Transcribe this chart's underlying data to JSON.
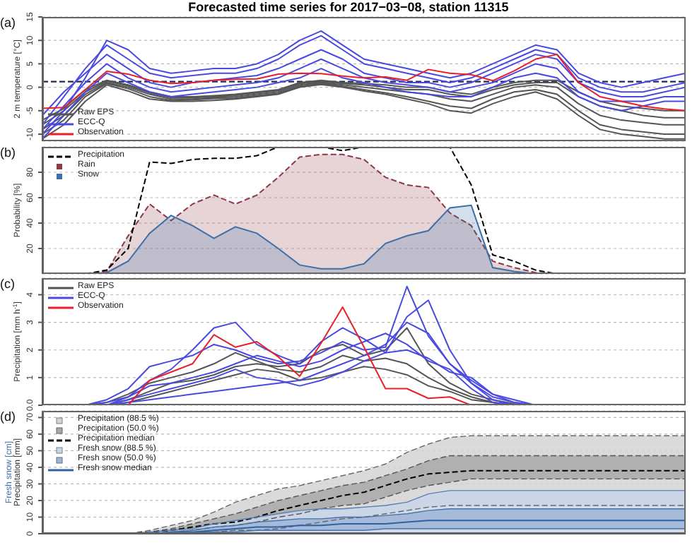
{
  "chart_data": [
    {
      "type": "line",
      "title": "Forecasted time series for 2017−03−08, station 11315",
      "ylabel": "2 m temperature [°C]",
      "annotations": [
        "(a)"
      ],
      "categories": [
        null,
        null,
        null,
        null,
        null,
        null,
        null,
        null,
        null,
        null,
        null,
        null,
        null,
        null,
        null,
        null,
        null,
        null,
        null,
        null,
        null,
        null,
        null,
        null,
        null,
        null,
        null,
        null,
        null,
        null,
        null
      ],
      "ylim": [
        -11.5,
        15
      ],
      "yticks": [
        -10,
        -5,
        0,
        5,
        10,
        15
      ],
      "grid": "y",
      "legend": "bottom left",
      "ref_lines": [
        {
          "axis": "y",
          "value": 1.2,
          "color": "#1f2a5a",
          "line_style": "dashed"
        }
      ],
      "series": [
        {
          "name": "Raw EPS",
          "color": "#555555",
          "values": [
            -9,
            -6,
            -1.5,
            1,
            0,
            -1.5,
            -2.5,
            -2.5,
            -2.2,
            -2,
            -1.5,
            -1,
            0.5,
            1,
            0.5,
            0,
            -0.5,
            -1,
            -1.5,
            -2.5,
            -3,
            -1.5,
            0,
            0.5,
            0,
            -3.5,
            -6,
            -7,
            -7.5,
            -8,
            -8
          ]
        },
        {
          "color": "#555555",
          "values": [
            -10,
            -7,
            -2,
            0.8,
            -0.3,
            -2,
            -2.8,
            -2.7,
            -2.4,
            -2.3,
            -1.8,
            -1.3,
            0.2,
            0.8,
            0.2,
            -0.5,
            -1.2,
            -2,
            -3,
            -4,
            -4.5,
            -2.5,
            -1,
            -0.5,
            -1.5,
            -5,
            -8,
            -9,
            -9.5,
            -10,
            -10
          ]
        },
        {
          "color": "#555555",
          "values": [
            -8,
            -5,
            -1,
            1.3,
            0.3,
            -1.2,
            -2.2,
            -2.2,
            -2,
            -1.7,
            -1.2,
            -0.7,
            0.8,
            1.2,
            0.8,
            0.5,
            0,
            -0.5,
            -0.5,
            -1.5,
            -2,
            -0.5,
            0.5,
            1,
            1,
            -2,
            -4,
            -5,
            -6,
            -6.5,
            -6.5
          ]
        },
        {
          "color": "#555555",
          "values": [
            -11,
            -8,
            -3,
            0.5,
            -0.8,
            -2.5,
            -3,
            -3,
            -2.8,
            -2.5,
            -2,
            -1.5,
            0,
            0.6,
            0,
            -0.8,
            -1.5,
            -2.5,
            -3.5,
            -5,
            -5.5,
            -3.5,
            -2,
            -1,
            -2.5,
            -6,
            -9,
            -10,
            -10.5,
            -11,
            -11
          ]
        },
        {
          "color": "#555555",
          "values": [
            -7,
            -4.5,
            -0.5,
            1.5,
            0.5,
            -1,
            -2,
            -2,
            -1.8,
            -1.5,
            -1,
            -0.5,
            1,
            1.5,
            1,
            0.8,
            0.5,
            0,
            0,
            -1,
            -1.5,
            0,
            1,
            1.5,
            1.5,
            -1,
            -3,
            -4,
            -4.5,
            -5,
            -5
          ]
        },
        {
          "name": "ECC-Q",
          "color": "#4a4ae0",
          "values": [
            -8,
            -2,
            4,
            9,
            6,
            3,
            2,
            2.5,
            3,
            3,
            4,
            6,
            9,
            11,
            8,
            5,
            4,
            3,
            2,
            1,
            2,
            4,
            6,
            8,
            7,
            2,
            0,
            -1,
            -1,
            0,
            1
          ]
        },
        {
          "color": "#4a4ae0",
          "values": [
            -6,
            -1,
            3,
            7,
            4,
            1,
            0,
            1,
            1.5,
            2,
            2.5,
            4,
            6,
            8,
            6,
            3,
            2,
            1,
            1,
            0,
            1,
            3,
            5,
            7,
            6,
            1,
            -1,
            -2,
            -2,
            -1,
            0
          ]
        },
        {
          "color": "#4a4ae0",
          "values": [
            -9,
            -4,
            1,
            5,
            2,
            0,
            -1,
            -0.5,
            0,
            0.5,
            1,
            2,
            4,
            6,
            4,
            2,
            1,
            0.5,
            0,
            -1,
            0,
            1,
            3,
            5,
            4,
            -1,
            -3,
            -3,
            -3,
            -2,
            -2
          ]
        },
        {
          "color": "#4a4ae0",
          "values": [
            -10,
            -5,
            2,
            10,
            8,
            4,
            3,
            3.5,
            4,
            4,
            5,
            7,
            10,
            12,
            9,
            6,
            5,
            4,
            3,
            2,
            3,
            5,
            7,
            9,
            8,
            3,
            1,
            0,
            1,
            2,
            3
          ]
        },
        {
          "color": "#4a4ae0",
          "values": [
            -11,
            -6,
            -1,
            3,
            1,
            -1,
            -2,
            -1.5,
            -1,
            -0.5,
            0,
            1,
            2,
            4,
            2,
            1,
            0,
            -1,
            -1.5,
            -2,
            -2,
            0,
            2,
            3,
            2,
            -2,
            -4,
            -5,
            -4,
            -3,
            -3
          ]
        },
        {
          "name": "Observation",
          "color": "#e8202a",
          "values": [
            -4.5,
            -4.3,
            -0.5,
            3.4,
            2.8,
            1.5,
            0.8,
            1.0,
            1.5,
            1.7,
            1.8,
            2.8,
            3.0,
            2.9,
            2.4,
            2.0,
            2.2,
            1.5,
            3.8,
            3.0,
            2.7,
            1.4,
            3.5,
            6.0,
            7.0,
            1.0,
            -2.0,
            -3.0,
            -4.0,
            -4.6,
            -5.0
          ]
        }
      ]
    },
    {
      "type": "area",
      "ylabel": "Probability [%]",
      "annotations": [
        "(b)"
      ],
      "categories": [
        null,
        null,
        null,
        null,
        null,
        null,
        null,
        null,
        null,
        null,
        null,
        null,
        null,
        null,
        null,
        null,
        null,
        null,
        null,
        null,
        null,
        null,
        null,
        null,
        null,
        null,
        null,
        null,
        null,
        null,
        null
      ],
      "ylim": [
        0,
        100
      ],
      "yticks": [
        20,
        40,
        60,
        80
      ],
      "grid": "y",
      "legend": "top left",
      "series": [
        {
          "name": "Precipitation",
          "type": "line",
          "color": "#000000",
          "line_style": "dashed",
          "values": [
            null,
            null,
            0,
            3,
            20,
            88,
            87,
            90,
            91,
            91,
            93,
            100,
            100,
            100,
            97,
            100,
            100,
            100,
            100,
            100,
            70,
            15,
            10,
            3,
            0,
            null,
            null,
            null,
            null,
            null,
            null
          ]
        },
        {
          "name": "Rain",
          "color": "#8b3a4a",
          "line_style": "dashed",
          "values": [
            null,
            null,
            0,
            2,
            30,
            55,
            42,
            55,
            62,
            55,
            62,
            76,
            92,
            94,
            94,
            90,
            76,
            70,
            68,
            48,
            38,
            10,
            5,
            1,
            0,
            null,
            null,
            null,
            null,
            null,
            null
          ]
        },
        {
          "name": "Snow",
          "color": "#3d6fa8",
          "values": [
            null,
            null,
            0,
            1,
            10,
            32,
            46,
            38,
            28,
            37,
            32,
            20,
            7,
            4,
            4,
            8,
            24,
            30,
            34,
            52,
            54,
            5,
            2,
            0,
            null,
            null,
            null,
            null,
            null,
            null,
            null
          ]
        }
      ]
    },
    {
      "type": "line",
      "ylabel": "Precipitation [mm h$^{-1}$]",
      "annotations": [
        "(c)"
      ],
      "categories": [
        null,
        null,
        null,
        null,
        null,
        null,
        null,
        null,
        null,
        null,
        null,
        null,
        null,
        null,
        null,
        null,
        null,
        null,
        null,
        null,
        null,
        null,
        null,
        null,
        null,
        null,
        null,
        null,
        null,
        null,
        null
      ],
      "ylim": [
        0,
        4.6
      ],
      "yticks": [
        {
          "value": 0,
          "label": "0.0"
        },
        1,
        2,
        3,
        4
      ],
      "grid": "y",
      "legend": "top left",
      "series": [
        {
          "name": "Raw EPS",
          "color": "#555555",
          "values": [
            null,
            null,
            0,
            0.1,
            0.4,
            0.8,
            1.0,
            1.2,
            1.5,
            1.9,
            1.6,
            1.3,
            1.2,
            1.4,
            1.8,
            1.6,
            1.7,
            1.5,
            1.0,
            0.6,
            0.3,
            0.1,
            0,
            null,
            null,
            null,
            null,
            null,
            null,
            null,
            null
          ]
        },
        {
          "color": "#555555",
          "values": [
            null,
            null,
            null,
            0,
            0.2,
            0.5,
            0.8,
            0.9,
            1.1,
            1.4,
            1.5,
            1.4,
            1.5,
            2.0,
            2.2,
            1.8,
            2.0,
            2.8,
            1.5,
            0.8,
            0.4,
            0.2,
            0.05,
            0,
            null,
            null,
            null,
            null,
            null,
            null,
            null
          ]
        },
        {
          "color": "#555555",
          "values": [
            null,
            null,
            null,
            0,
            0.1,
            0.3,
            0.5,
            0.7,
            0.9,
            1.1,
            1.3,
            1.2,
            0.9,
            1.0,
            1.2,
            1.4,
            1.3,
            1.1,
            0.7,
            0.5,
            0.2,
            0.1,
            0,
            null,
            null,
            null,
            null,
            null,
            null,
            null,
            null
          ]
        },
        {
          "name": "ECC-Q",
          "color": "#4a4ae0",
          "values": [
            null,
            null,
            0,
            0.2,
            0.6,
            1.4,
            1.6,
            1.8,
            2.2,
            2.0,
            1.7,
            1.5,
            1.6,
            1.9,
            2.3,
            2.0,
            2.1,
            4.3,
            2.5,
            1.5,
            0.8,
            0.3,
            0.1,
            0,
            null,
            null,
            null,
            null,
            null,
            null,
            null
          ]
        },
        {
          "color": "#4a4ae0",
          "values": [
            null,
            null,
            null,
            0,
            0.2,
            0.4,
            0.6,
            0.8,
            1.0,
            1.3,
            1.0,
            0.9,
            0.7,
            0.9,
            1.2,
            1.6,
            1.9,
            3.2,
            3.8,
            2.0,
            0.8,
            0.2,
            0,
            null,
            null,
            null,
            null,
            null,
            null,
            null,
            null
          ]
        },
        {
          "color": "#4a4ae0",
          "values": [
            null,
            null,
            0,
            0.1,
            0.3,
            0.9,
            1.3,
            2.0,
            2.8,
            3.0,
            2.2,
            1.8,
            1.5,
            2.3,
            2.8,
            2.4,
            1.9,
            2.0,
            1.7,
            1.2,
            1.0,
            0.4,
            0.1,
            0,
            null,
            null,
            null,
            null,
            null,
            null,
            null
          ]
        },
        {
          "color": "#4a4ae0",
          "values": [
            null,
            null,
            null,
            0,
            0.1,
            0.2,
            0.3,
            0.4,
            0.5,
            0.6,
            0.7,
            0.8,
            0.9,
            1.2,
            1.5,
            1.8,
            2.2,
            3.0,
            2.6,
            1.5,
            0.9,
            0.4,
            0.2,
            0,
            null,
            null,
            null,
            null,
            null,
            null,
            null
          ]
        },
        {
          "color": "#4a4ae0",
          "values": [
            null,
            null,
            null,
            0,
            0.3,
            0.7,
            0.8,
            1.0,
            1.2,
            1.5,
            1.8,
            1.6,
            1.4,
            1.6,
            2.0,
            2.3,
            2.6,
            2.2,
            1.6,
            1.3,
            0.6,
            0.1,
            0,
            null,
            null,
            null,
            null,
            null,
            null,
            null,
            null
          ]
        },
        {
          "name": "Observation",
          "color": "#e8202a",
          "values": [
            null,
            null,
            null,
            null,
            0,
            0.9,
            1.2,
            1.5,
            2.55,
            2.1,
            2.3,
            1.75,
            1.05,
            2.25,
            3.55,
            2.1,
            0.6,
            0.6,
            0.25,
            0.3,
            0,
            null,
            null,
            null,
            null,
            null,
            null,
            null,
            null,
            null,
            null
          ]
        }
      ]
    },
    {
      "type": "line",
      "ylabel": "Precipitation [mm]",
      "y2label": "Fresh snow [cm]",
      "annotations": [
        "(d)"
      ],
      "categories": [
        null,
        null,
        null,
        null,
        null,
        null,
        null,
        null,
        null,
        null,
        null,
        null,
        null,
        null,
        null,
        null,
        null,
        null,
        null,
        null,
        null,
        null,
        null,
        null,
        null,
        null,
        null,
        null,
        null,
        null,
        null
      ],
      "ylim": [
        0,
        74
      ],
      "yticks": [
        0,
        10,
        20,
        30,
        40,
        50,
        60,
        70
      ],
      "grid": "y",
      "legend": "top left",
      "series": [
        {
          "name": "Precipitation (88.5 %)",
          "type": "area",
          "color": "#d4d4d4",
          "line_style": "dashed",
          "values": [
            null,
            null,
            null,
            null,
            null,
            null,
            null,
            null,
            null,
            null,
            null,
            null,
            null,
            null,
            null,
            null,
            null,
            null,
            null,
            null,
            null,
            null,
            null,
            null,
            null,
            null,
            null,
            null,
            null,
            null,
            null
          ],
          "lower": [
            null,
            null,
            null,
            null,
            0,
            0,
            0,
            1,
            1,
            2,
            2,
            3,
            5,
            7,
            9,
            10,
            12,
            14,
            16,
            17,
            17,
            17,
            17,
            17,
            17,
            17,
            17,
            17,
            17,
            17,
            17
          ],
          "upper": [
            null,
            null,
            null,
            null,
            0,
            2,
            5,
            8,
            13,
            19,
            23,
            27,
            29,
            32,
            35,
            38,
            42,
            49,
            54,
            58,
            59,
            59,
            59,
            59,
            59,
            59,
            59,
            59,
            59,
            59,
            59
          ]
        },
        {
          "name": "Precipitation (50.0 %)",
          "type": "area",
          "color": "#a8a8a8",
          "line_style": "dashed",
          "values": [
            null,
            null,
            null,
            null,
            null,
            null,
            null,
            null,
            null,
            null,
            null,
            null,
            null,
            null,
            null,
            null,
            null,
            null,
            null,
            null,
            null,
            null,
            null,
            null,
            null,
            null,
            null,
            null,
            null,
            null,
            null
          ],
          "lower": [
            null,
            null,
            null,
            null,
            0,
            0,
            1,
            2,
            4,
            5,
            7,
            10,
            12,
            15,
            17,
            18,
            22,
            26,
            29,
            31,
            33,
            33,
            33,
            33,
            33,
            33,
            33,
            33,
            33,
            33,
            33
          ],
          "upper": [
            null,
            null,
            null,
            null,
            0,
            1,
            3,
            6,
            9,
            12,
            16,
            20,
            23,
            26,
            29,
            31,
            35,
            39,
            44,
            47,
            47,
            47,
            47,
            47,
            47,
            47,
            47,
            47,
            47,
            47,
            47
          ]
        },
        {
          "color": "#666666",
          "line_style": "dashed",
          "values": [
            null,
            null,
            null,
            null,
            0,
            0,
            0,
            1,
            1,
            2,
            2,
            3,
            5,
            7,
            9,
            10,
            12,
            14,
            16,
            17,
            17,
            17,
            17,
            17,
            17,
            17,
            17,
            17,
            17,
            17,
            17
          ]
        },
        {
          "color": "#666666",
          "line_style": "dashed",
          "values": [
            null,
            null,
            null,
            null,
            0,
            2,
            5,
            8,
            13,
            19,
            23,
            27,
            29,
            32,
            35,
            38,
            42,
            49,
            54,
            58,
            59,
            59,
            59,
            59,
            59,
            59,
            59,
            59,
            59,
            59,
            59
          ]
        },
        {
          "color": "#555555",
          "line_style": "dashed",
          "values": [
            null,
            null,
            null,
            null,
            0,
            0,
            1,
            2,
            4,
            5,
            7,
            10,
            12,
            15,
            17,
            18,
            22,
            26,
            29,
            31,
            33,
            33,
            33,
            33,
            33,
            33,
            33,
            33,
            33,
            33,
            33
          ]
        },
        {
          "color": "#555555",
          "line_style": "dashed",
          "values": [
            null,
            null,
            null,
            null,
            0,
            1,
            3,
            6,
            9,
            12,
            16,
            20,
            23,
            26,
            29,
            31,
            35,
            39,
            44,
            47,
            47,
            47,
            47,
            47,
            47,
            47,
            47,
            47,
            47,
            47,
            47
          ]
        },
        {
          "name": "Precipitation median",
          "color": "#000000",
          "line_style": "dashed",
          "values": [
            null,
            null,
            null,
            null,
            0,
            1,
            2,
            4,
            6,
            7,
            10,
            14,
            17,
            20,
            23,
            25,
            29,
            33,
            36,
            37,
            38,
            38,
            38,
            38,
            38,
            38,
            38,
            38,
            38,
            38,
            38
          ]
        },
        {
          "name": "Fresh snow (88.5 %)",
          "type": "area",
          "color": "#c8d6e8",
          "values": [
            null,
            null,
            null,
            null,
            null,
            null,
            null,
            null,
            null,
            null,
            null,
            null,
            null,
            null,
            null,
            null,
            null,
            null,
            null,
            null,
            null,
            null,
            null,
            null,
            null,
            null,
            null,
            null,
            null,
            null,
            null
          ],
          "lower": [
            null,
            null,
            null,
            null,
            0,
            0,
            0,
            0,
            0,
            0,
            0,
            0,
            0,
            0,
            0,
            0,
            0,
            0,
            0,
            0,
            0,
            0,
            0,
            0,
            0,
            0,
            0,
            0,
            0,
            0,
            0
          ],
          "upper": [
            null,
            null,
            null,
            null,
            0,
            1,
            2,
            3,
            6,
            8,
            10,
            12,
            14,
            15,
            15,
            16,
            17,
            19,
            24,
            26,
            26,
            26,
            26,
            26,
            26,
            26,
            26,
            26,
            26,
            26,
            26
          ]
        },
        {
          "name": "Fresh snow (50.0 %)",
          "type": "area",
          "color": "#9db5d6",
          "values": [
            null,
            null,
            null,
            null,
            null,
            null,
            null,
            null,
            null,
            null,
            null,
            null,
            null,
            null,
            null,
            null,
            null,
            null,
            null,
            null,
            null,
            null,
            null,
            null,
            null,
            null,
            null,
            null,
            null,
            null,
            null
          ],
          "lower": [
            null,
            null,
            null,
            null,
            0,
            0,
            0,
            1,
            1,
            1,
            2,
            2,
            2,
            2,
            2,
            2,
            3,
            3,
            3,
            3,
            3,
            3,
            3,
            3,
            3,
            3,
            3,
            3,
            3,
            3,
            3
          ],
          "upper": [
            null,
            null,
            null,
            null,
            0,
            0,
            1,
            2,
            4,
            5,
            7,
            8,
            9,
            9,
            10,
            10,
            11,
            12,
            14,
            15,
            15,
            15,
            15,
            15,
            15,
            15,
            15,
            15,
            15,
            15,
            15
          ]
        },
        {
          "color": "#5a7fb0",
          "values": [
            null,
            null,
            null,
            null,
            0,
            1,
            2,
            3,
            6,
            8,
            10,
            12,
            14,
            15,
            15,
            16,
            17,
            19,
            24,
            26,
            26,
            26,
            26,
            26,
            26,
            26,
            26,
            26,
            26,
            26,
            26
          ]
        },
        {
          "color": "#4a72aa",
          "values": [
            null,
            null,
            null,
            null,
            0,
            0,
            0,
            1,
            1,
            1,
            2,
            2,
            2,
            2,
            2,
            2,
            3,
            3,
            3,
            3,
            3,
            3,
            3,
            3,
            3,
            3,
            3,
            3,
            3,
            3,
            3
          ]
        },
        {
          "color": "#4a72aa",
          "values": [
            null,
            null,
            null,
            null,
            0,
            0,
            1,
            2,
            4,
            5,
            7,
            8,
            9,
            9,
            10,
            10,
            11,
            12,
            14,
            15,
            15,
            15,
            15,
            15,
            15,
            15,
            15,
            15,
            15,
            15,
            15
          ]
        },
        {
          "name": "Fresh snow median",
          "color": "#2f63a3",
          "values": [
            null,
            null,
            null,
            null,
            0,
            0,
            1,
            1,
            2,
            3,
            4,
            4,
            5,
            5,
            6,
            6,
            6,
            7,
            8,
            8,
            8,
            8,
            8,
            8,
            8,
            8,
            8,
            8,
            8,
            8,
            8
          ]
        }
      ]
    }
  ]
}
